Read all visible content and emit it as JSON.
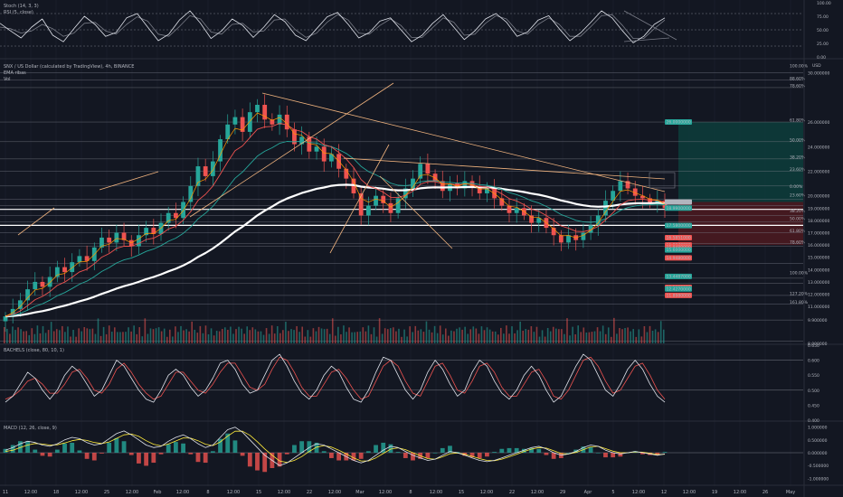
{
  "colors": {
    "background": "#131722",
    "grid": "#1f2330",
    "separator": "#2a2e39",
    "text": "#b2b5be",
    "up": "#26a69a",
    "down": "#ef5350",
    "ema_white": "#ffffff",
    "ema_red": "#ef5350",
    "ema_teal": "#26a69a",
    "ema_orange": "#ff9800",
    "trend_line": "#f0b37e",
    "fib_line": "#787b86",
    "stoch_k": "#e0e3eb",
    "stoch_d": "#787b86",
    "macd_line": "#e0e3eb",
    "signal_line": "#ffeb3b",
    "long_profit_zone": "#0d3b3a",
    "long_stop_zone": "#4a1a20"
  },
  "legend": {
    "stoch": "Stoch (14, 3, 3)",
    "stoch_rsi": "RSI (5, close)",
    "main": "SNX / US Dollar (calculated by TradingView), 4h, BINANCE",
    "ema": "EMA ribas",
    "vol": "Vol",
    "osc": "BACHELS (close, 80, 10, 1)",
    "macd": "MACD (12, 26, close, 9)"
  },
  "axes": {
    "main_unit": "USD",
    "stoch_ticks": [
      "100.00",
      "75.00",
      "50.00",
      "25.00",
      "0.00"
    ],
    "main_ticks": [
      "30.000000",
      "26.000000",
      "24.000000",
      "22.000000",
      "20.000000",
      "19.000000",
      "18.000000",
      "17.000000",
      "16.000000",
      "15.000000",
      "14.000000",
      "13.000000",
      "12.000000",
      "11.000000",
      "9.900000",
      "8.000000"
    ],
    "osc_ticks": [
      "0.650",
      "0.600",
      "0.550",
      "0.500",
      "0.450",
      "0.400"
    ],
    "macd_ticks": [
      "1.000000",
      "0.500000",
      "0.000000",
      "-0.500000",
      "-1.000000"
    ]
  },
  "time_axis": [
    "11",
    "12:00",
    "18",
    "12:00",
    "25",
    "12:00",
    "Feb",
    "12:00",
    "8",
    "12:00",
    "15",
    "12:00",
    "22",
    "12:00",
    "Mar",
    "12:00",
    "8",
    "12:00",
    "15",
    "12:00",
    "22",
    "12:00",
    "29",
    "Apr",
    "5",
    "12:00",
    "12",
    "12:00",
    "19",
    "12:00",
    "26",
    "May"
  ],
  "fib_labels": [
    "100.00%",
    "88.60%",
    "78.60%",
    "61.80%",
    "50.00%",
    "38.20%",
    "23.60%",
    "0.00%",
    "23.60%",
    "38.20%",
    "50.00%",
    "61.80%",
    "78.60%",
    "100.00%",
    "127.20%",
    "161.80%"
  ],
  "price_badges": [
    {
      "text": "26.0000000",
      "color": "#26a69a"
    },
    {
      "text": "19.4960000",
      "color": "#b2b5be"
    },
    {
      "text": "18.9900000",
      "color": "#26a69a"
    },
    {
      "text": "17.5800000",
      "color": "#26a69a"
    },
    {
      "text": "16.5851000",
      "color": "#ef5350"
    },
    {
      "text": "15.9870000",
      "color": "#ef5350"
    },
    {
      "text": "15.8480000",
      "color": "#ef5350"
    },
    {
      "text": "15.6000000",
      "color": "#26a69a"
    },
    {
      "text": "14.9480000",
      "color": "#ef5350"
    },
    {
      "text": "13.4487000",
      "color": "#26a69a"
    },
    {
      "text": "12.5600000",
      "color": "#ef5350"
    },
    {
      "text": "12.4270000",
      "color": "#26a69a"
    },
    {
      "text": "11.8980000",
      "color": "#ef5350"
    }
  ],
  "chart_data": [
    {
      "type": "line",
      "title": "Stoch (14, 3, 3)",
      "ylim": [
        0,
        100
      ],
      "levels": [
        80,
        50,
        20
      ],
      "series": [
        {
          "values": [
            62,
            48,
            35,
            55,
            70,
            40,
            28,
            52,
            75,
            60,
            38,
            45,
            72,
            80,
            55,
            30,
            42,
            68,
            85,
            62,
            34,
            48,
            70,
            58,
            36,
            55,
            78,
            65,
            40,
            30,
            52,
            74,
            82,
            60,
            35,
            45,
            66,
            72,
            50,
            28,
            40,
            62,
            78,
            55,
            32,
            48,
            70,
            80,
            64,
            38,
            46,
            68,
            76,
            52,
            30,
            44,
            64,
            85,
            72,
            48,
            26,
            38,
            60,
            72
          ]
        },
        {
          "values": [
            55,
            52,
            44,
            48,
            60,
            52,
            38,
            44,
            62,
            64,
            48,
            42,
            60,
            74,
            66,
            42,
            38,
            56,
            76,
            70,
            46,
            42,
            60,
            62,
            46,
            48,
            68,
            70,
            50,
            36,
            44,
            64,
            78,
            68,
            44,
            42,
            58,
            70,
            58,
            36,
            36,
            54,
            72,
            64,
            40,
            42,
            62,
            76,
            70,
            48,
            42,
            60,
            72,
            60,
            38,
            38,
            56,
            76,
            78,
            58,
            34,
            34,
            52,
            68
          ]
        }
      ]
    },
    {
      "type": "candlestick",
      "title": "SNX / US Dollar (calculated by TradingView), 4h, BINANCE",
      "ylabel": "USD",
      "ylim": [
        8,
        31
      ],
      "close": [
        10.2,
        10.8,
        11.5,
        12.4,
        13.0,
        12.6,
        13.4,
        14.2,
        13.8,
        14.6,
        15.1,
        14.7,
        15.8,
        16.6,
        16.2,
        17.0,
        16.4,
        15.9,
        16.8,
        17.4,
        16.9,
        17.8,
        18.6,
        18.2,
        19.5,
        20.8,
        22.4,
        21.6,
        22.8,
        24.6,
        25.8,
        26.4,
        25.2,
        26.8,
        27.4,
        26.2,
        25.8,
        26.6,
        25.4,
        24.2,
        24.8,
        23.6,
        24.0,
        22.8,
        23.4,
        22.2,
        21.4,
        20.2,
        18.4,
        19.2,
        20.0,
        19.4,
        18.6,
        19.8,
        20.6,
        21.4,
        22.6,
        21.8,
        21.2,
        20.4,
        21.0,
        20.6,
        21.2,
        20.8,
        20.2,
        20.6,
        19.8,
        19.2,
        18.6,
        19.0,
        18.4,
        17.8,
        18.2,
        17.4,
        16.8,
        16.2,
        16.8,
        16.4,
        17.0,
        17.6,
        18.4,
        19.6,
        20.4,
        21.2,
        20.6,
        20.0,
        19.8,
        19.4,
        19.6,
        19.0
      ]
    },
    {
      "type": "line",
      "title": "BACHELS (close, 80, 10, 1)",
      "ylim": [
        0.4,
        0.65
      ],
      "series": [
        {
          "values": [
            0.46,
            0.48,
            0.52,
            0.56,
            0.54,
            0.5,
            0.47,
            0.5,
            0.55,
            0.58,
            0.56,
            0.52,
            0.48,
            0.5,
            0.55,
            0.6,
            0.58,
            0.54,
            0.5,
            0.47,
            0.46,
            0.5,
            0.55,
            0.57,
            0.55,
            0.51,
            0.48,
            0.5,
            0.54,
            0.59,
            0.6,
            0.57,
            0.52,
            0.49,
            0.5,
            0.55,
            0.6,
            0.62,
            0.58,
            0.53,
            0.49,
            0.47,
            0.5,
            0.55,
            0.58,
            0.56,
            0.51,
            0.47,
            0.46,
            0.5,
            0.56,
            0.61,
            0.6,
            0.55,
            0.5,
            0.47,
            0.5,
            0.56,
            0.6,
            0.57,
            0.52,
            0.48,
            0.5,
            0.56,
            0.6,
            0.58,
            0.53,
            0.49,
            0.47,
            0.5,
            0.55,
            0.58,
            0.55,
            0.5,
            0.46,
            0.48,
            0.53,
            0.58,
            0.62,
            0.6,
            0.55,
            0.5,
            0.48,
            0.52,
            0.57,
            0.6,
            0.57,
            0.52,
            0.48,
            0.46
          ]
        },
        {
          "values": [
            0.47,
            0.48,
            0.5,
            0.53,
            0.54,
            0.52,
            0.49,
            0.49,
            0.52,
            0.56,
            0.57,
            0.54,
            0.5,
            0.49,
            0.52,
            0.57,
            0.59,
            0.56,
            0.52,
            0.49,
            0.47,
            0.48,
            0.52,
            0.56,
            0.56,
            0.53,
            0.5,
            0.49,
            0.52,
            0.56,
            0.59,
            0.59,
            0.55,
            0.51,
            0.5,
            0.52,
            0.57,
            0.61,
            0.6,
            0.56,
            0.51,
            0.48,
            0.48,
            0.52,
            0.56,
            0.57,
            0.54,
            0.5,
            0.47,
            0.48,
            0.53,
            0.58,
            0.6,
            0.58,
            0.53,
            0.49,
            0.48,
            0.53,
            0.58,
            0.59,
            0.55,
            0.5,
            0.49,
            0.53,
            0.58,
            0.59,
            0.56,
            0.51,
            0.48,
            0.48,
            0.52,
            0.56,
            0.57,
            0.53,
            0.48,
            0.47,
            0.5,
            0.55,
            0.6,
            0.61,
            0.58,
            0.53,
            0.49,
            0.5,
            0.54,
            0.58,
            0.59,
            0.55,
            0.5,
            0.47
          ]
        }
      ]
    },
    {
      "type": "line",
      "title": "MACD (12, 26, close, 9)",
      "ylim": [
        -1.2,
        1.2
      ],
      "series": [
        {
          "values": [
            0.1,
            0.2,
            0.35,
            0.45,
            0.4,
            0.3,
            0.25,
            0.35,
            0.5,
            0.6,
            0.55,
            0.4,
            0.3,
            0.35,
            0.55,
            0.75,
            0.85,
            0.7,
            0.5,
            0.3,
            0.2,
            0.25,
            0.45,
            0.6,
            0.7,
            0.55,
            0.35,
            0.2,
            0.3,
            0.6,
            0.9,
            1.0,
            0.8,
            0.5,
            0.2,
            -0.1,
            -0.3,
            -0.5,
            -0.4,
            -0.2,
            0.0,
            0.2,
            0.35,
            0.3,
            0.15,
            0.0,
            -0.15,
            -0.3,
            -0.4,
            -0.3,
            -0.1,
            0.1,
            0.25,
            0.2,
            0.05,
            -0.1,
            -0.2,
            -0.3,
            -0.25,
            -0.1,
            0.05,
            0.0,
            -0.1,
            -0.2,
            -0.3,
            -0.35,
            -0.3,
            -0.2,
            -0.1,
            0.0,
            0.1,
            0.2,
            0.25,
            0.15,
            0.0,
            -0.1,
            -0.05,
            0.05,
            0.2,
            0.3,
            0.25,
            0.1,
            0.0,
            -0.05,
            0.0,
            0.05,
            0.0,
            -0.05,
            -0.1,
            -0.05
          ]
        },
        {
          "values": [
            0.05,
            0.1,
            0.2,
            0.3,
            0.36,
            0.34,
            0.3,
            0.31,
            0.38,
            0.47,
            0.52,
            0.48,
            0.4,
            0.36,
            0.42,
            0.56,
            0.7,
            0.73,
            0.64,
            0.47,
            0.33,
            0.27,
            0.34,
            0.46,
            0.58,
            0.57,
            0.47,
            0.33,
            0.28,
            0.42,
            0.65,
            0.84,
            0.84,
            0.68,
            0.43,
            0.15,
            -0.1,
            -0.32,
            -0.38,
            -0.3,
            -0.15,
            0.05,
            0.22,
            0.28,
            0.22,
            0.1,
            -0.05,
            -0.2,
            -0.32,
            -0.32,
            -0.2,
            -0.03,
            0.14,
            0.19,
            0.12,
            0.0,
            -0.12,
            -0.23,
            -0.25,
            -0.16,
            -0.04,
            -0.01,
            -0.06,
            -0.14,
            -0.23,
            -0.3,
            -0.31,
            -0.25,
            -0.16,
            -0.06,
            0.05,
            0.14,
            0.2,
            0.18,
            0.08,
            -0.03,
            -0.05,
            0.01,
            0.12,
            0.23,
            0.25,
            0.16,
            0.06,
            0.0,
            0.0,
            0.03,
            0.02,
            -0.02,
            -0.07,
            -0.06
          ]
        }
      ]
    }
  ]
}
